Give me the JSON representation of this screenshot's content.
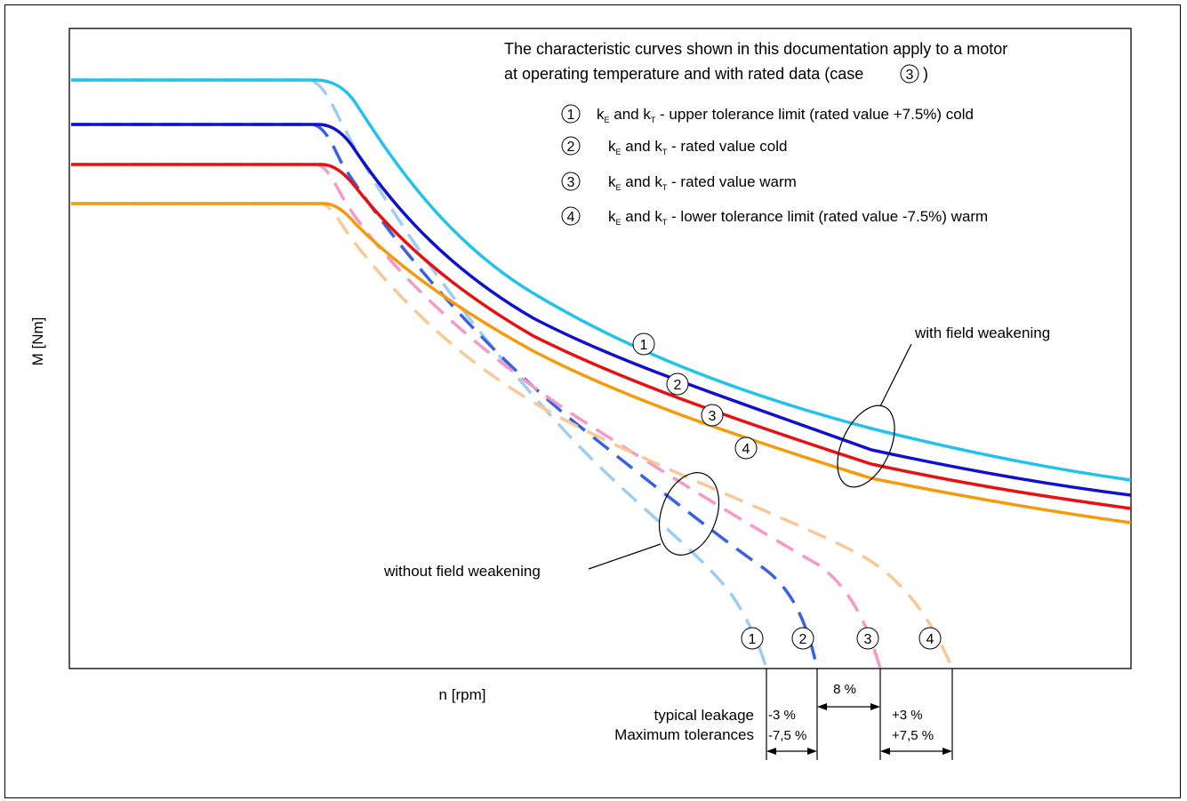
{
  "header": {
    "line1": "The characteristic curves shown in this documentation apply to a motor",
    "line2": "at operating temperature and with rated data (case",
    "line2_close": ")",
    "case_marker": "3"
  },
  "legend": [
    {
      "marker": "1",
      "pre": "k",
      "sub1": "E",
      "mid": " and k",
      "sub2": "T",
      "post": " - upper tolerance limit (rated value +7.5%) cold"
    },
    {
      "marker": "2",
      "pre": "k",
      "sub1": "E",
      "mid": " and k",
      "sub2": "T",
      "post": " - rated value cold"
    },
    {
      "marker": "3",
      "pre": "k",
      "sub1": "E",
      "mid": " and k",
      "sub2": "T",
      "post": " - rated value warm"
    },
    {
      "marker": "4",
      "pre": "k",
      "sub1": "E",
      "mid": " and k",
      "sub2": "T",
      "post": " - lower tolerance limit (rated value -7.5%) warm"
    }
  ],
  "axes": {
    "ylabel": "M [Nm]",
    "xlabel": "n [rpm]"
  },
  "annotations": {
    "with_fw": "with field weakening",
    "without_fw": "without field weakening",
    "typical_leakage": "typical leakage",
    "max_tolerances": "Maximum tolerances",
    "pct_8": "8 %",
    "pct_m3": "-3 %",
    "pct_m75": "-7,5 %",
    "pct_p3": "+3 %",
    "pct_p75": "+7,5 %"
  },
  "curve_markers": {
    "solid": [
      "1",
      "2",
      "3",
      "4"
    ],
    "dashed": [
      "1",
      "2",
      "3",
      "4"
    ]
  },
  "colors": {
    "curve1_solid": "#22c3ea",
    "curve2_solid": "#1010d0",
    "curve3_solid": "#e81010",
    "curve4_solid": "#f59a0c",
    "curve1_dashed": "#9fcdf0",
    "curve2_dashed": "#3a62e0",
    "curve3_dashed": "#f59ac8",
    "curve4_dashed": "#f8c896"
  }
}
